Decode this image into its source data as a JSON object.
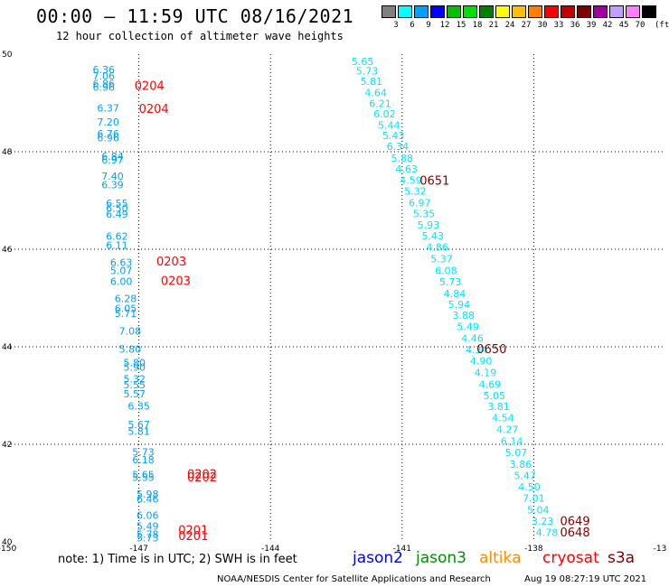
{
  "header": {
    "title": "00:00 – 11:59 UTC 08/16/2021",
    "subtitle": "12 hour collection of altimeter wave heights"
  },
  "legend": {
    "unit": "(ft)",
    "bins": [
      {
        "label": "3",
        "color": "#808080"
      },
      {
        "label": "6",
        "color": "#00ffff"
      },
      {
        "label": "9",
        "color": "#00a0ff"
      },
      {
        "label": "12",
        "color": "#0000ff"
      },
      {
        "label": "15",
        "color": "#00c000"
      },
      {
        "label": "18",
        "color": "#00e000"
      },
      {
        "label": "21",
        "color": "#008000"
      },
      {
        "label": "24",
        "color": "#ffff00"
      },
      {
        "label": "27",
        "color": "#ffc000"
      },
      {
        "label": "30",
        "color": "#ff8000"
      },
      {
        "label": "33",
        "color": "#ff0000"
      },
      {
        "label": "36",
        "color": "#c00000"
      },
      {
        "label": "39",
        "color": "#800000"
      },
      {
        "label": "42",
        "color": "#a000a0"
      },
      {
        "label": "45",
        "color": "#c0a0ff"
      },
      {
        "label": "70",
        "color": "#ff80ff"
      },
      {
        "label": "",
        "color": "#000000"
      }
    ]
  },
  "map": {
    "lon_range": [
      -150,
      -135
    ],
    "lat_range": [
      40,
      50
    ],
    "lon_ticks": [
      "-150",
      "-147",
      "-144",
      "-141",
      "-138",
      "-13"
    ],
    "lat_ticks": [
      "40",
      "42",
      "44",
      "46",
      "48",
      "50"
    ],
    "tracks": [
      {
        "color": "#00e5ff",
        "points": [
          [
            -141.9,
            49.78,
            "5.65"
          ],
          [
            -141.8,
            49.58,
            "5.73"
          ],
          [
            -141.7,
            49.37,
            "5.81"
          ],
          [
            -141.6,
            49.14,
            "4.64"
          ],
          [
            -141.5,
            48.92,
            "6.21"
          ],
          [
            -141.4,
            48.7,
            "6.02"
          ],
          [
            -141.3,
            48.47,
            "5.44"
          ],
          [
            -141.2,
            48.26,
            "5.43"
          ],
          [
            -141.1,
            48.04,
            "6.34"
          ],
          [
            -141.0,
            47.8,
            "5.88"
          ],
          [
            -140.9,
            47.57,
            "4.63"
          ],
          [
            -140.8,
            47.34,
            "4.59"
          ],
          [
            -140.7,
            47.12,
            "5.32"
          ],
          [
            -140.6,
            46.88,
            "6.97"
          ],
          [
            -140.5,
            46.66,
            "5.35"
          ],
          [
            -140.4,
            46.43,
            "5.93"
          ],
          [
            -140.3,
            46.2,
            "5.43"
          ],
          [
            -140.2,
            45.97,
            "4.86"
          ],
          [
            -140.1,
            45.73,
            "5.37"
          ],
          [
            -140.0,
            45.49,
            "6.08"
          ],
          [
            -139.9,
            45.26,
            "5.73"
          ],
          [
            -139.8,
            45.02,
            "4.84"
          ],
          [
            -139.7,
            44.8,
            "5.94"
          ],
          [
            -139.6,
            44.57,
            "3.88"
          ],
          [
            -139.5,
            44.34,
            "5.49"
          ],
          [
            -139.4,
            44.1,
            "4.46"
          ],
          [
            -139.3,
            43.87,
            "4.34"
          ],
          [
            -139.2,
            43.64,
            "4.90"
          ],
          [
            -139.1,
            43.4,
            "4.19"
          ],
          [
            -139.0,
            43.16,
            "4.69"
          ],
          [
            -138.9,
            42.93,
            "5.05"
          ],
          [
            -138.8,
            42.7,
            "3.81"
          ],
          [
            -138.7,
            42.47,
            "4.54"
          ],
          [
            -138.6,
            42.23,
            "4.27"
          ],
          [
            -138.5,
            41.99,
            "6.14"
          ],
          [
            -138.4,
            41.76,
            "5.07"
          ],
          [
            -138.3,
            41.52,
            "3.86"
          ],
          [
            -138.2,
            41.29,
            "5.47"
          ],
          [
            -138.1,
            41.06,
            "4.50"
          ],
          [
            -138.0,
            40.82,
            "7.01"
          ],
          [
            -137.9,
            40.58,
            "5.04"
          ],
          [
            -137.8,
            40.35,
            "3.23"
          ],
          [
            -137.7,
            40.12,
            "4.78"
          ]
        ],
        "times": [
          [
            -140.6,
            47.32,
            "0651"
          ],
          [
            -139.3,
            43.87,
            "0650"
          ],
          [
            -137.4,
            40.34,
            "0649"
          ],
          [
            -137.4,
            40.11,
            "0648"
          ]
        ],
        "time_color": "#800000"
      },
      {
        "color": "#00a0ff",
        "points": [
          [
            -147.8,
            49.61,
            "6.36"
          ],
          [
            -147.8,
            49.48,
            "7.06"
          ],
          [
            -147.8,
            49.32,
            "6.86"
          ],
          [
            -147.8,
            49.25,
            "6.96"
          ],
          [
            -147.7,
            48.82,
            "6.37"
          ],
          [
            -147.7,
            48.54,
            "7.20"
          ],
          [
            -147.7,
            48.3,
            "6.76"
          ],
          [
            -147.7,
            48.21,
            "6.96"
          ],
          [
            -147.6,
            47.83,
            "6.84"
          ],
          [
            -147.6,
            47.76,
            "6.97"
          ],
          [
            -147.6,
            47.43,
            "7.40"
          ],
          [
            -147.6,
            47.25,
            "6.39"
          ],
          [
            -147.5,
            46.87,
            "6.55"
          ],
          [
            -147.5,
            46.77,
            "6.50"
          ],
          [
            -147.5,
            46.65,
            "6.49"
          ],
          [
            -147.5,
            46.19,
            "6.62"
          ],
          [
            -147.5,
            46.01,
            "6.11"
          ],
          [
            -147.4,
            45.66,
            "6.63"
          ],
          [
            -147.4,
            45.49,
            "5.07"
          ],
          [
            -147.4,
            45.27,
            "6.00"
          ],
          [
            -147.3,
            44.92,
            "6.28"
          ],
          [
            -147.3,
            44.71,
            "6.05"
          ],
          [
            -147.3,
            44.61,
            "5.71"
          ],
          [
            -147.2,
            44.25,
            "7.08"
          ],
          [
            -147.2,
            43.88,
            "5.80"
          ],
          [
            -147.1,
            43.6,
            "5.80"
          ],
          [
            -147.1,
            43.51,
            "5.90"
          ],
          [
            -147.1,
            43.27,
            "5.32"
          ],
          [
            -147.1,
            43.15,
            "5.55"
          ],
          [
            -147.1,
            42.96,
            "5.57"
          ],
          [
            -147.0,
            42.71,
            "6.35"
          ],
          [
            -147.0,
            42.33,
            "5.67"
          ],
          [
            -147.0,
            42.19,
            "5.81"
          ],
          [
            -146.9,
            41.77,
            "5.73"
          ],
          [
            -146.9,
            41.61,
            "6.18"
          ],
          [
            -146.9,
            41.31,
            "5.65"
          ],
          [
            -146.9,
            41.25,
            "5.55"
          ],
          [
            -146.8,
            40.91,
            "5.98"
          ],
          [
            -146.8,
            40.81,
            "6.46"
          ],
          [
            -146.8,
            40.47,
            "6.06"
          ],
          [
            -146.8,
            40.25,
            "5.49"
          ],
          [
            -146.8,
            40.08,
            "5.78"
          ],
          [
            -146.8,
            40.01,
            "5.73"
          ]
        ],
        "times": [
          [
            -147.1,
            49.27,
            "0204"
          ],
          [
            -147.0,
            48.8,
            "0204"
          ],
          [
            -146.6,
            45.67,
            "0203"
          ],
          [
            -146.5,
            45.27,
            "0203"
          ],
          [
            -145.9,
            41.31,
            "0202"
          ],
          [
            -145.9,
            41.24,
            "0202"
          ],
          [
            -146.1,
            40.16,
            "0201"
          ],
          [
            -146.1,
            40.04,
            "0201"
          ]
        ],
        "time_color": "#ff0000"
      }
    ]
  },
  "footer": {
    "note": "note:  1) Time is in UTC;  2) SWH is in feet",
    "satellites": [
      {
        "label": "jason2",
        "color": "#0000ff"
      },
      {
        "label": "jason3",
        "color": "#009000"
      },
      {
        "label": "altika",
        "color": "#ff8c00"
      },
      {
        "label": "cryosat",
        "color": "#ff0000"
      },
      {
        "label": "s3a",
        "color": "#800000"
      }
    ],
    "credit": "NOAA/NESDIS Center for Satellite Applications and Research",
    "stamp": "Aug 19 08:27:19 UTC 2021"
  }
}
